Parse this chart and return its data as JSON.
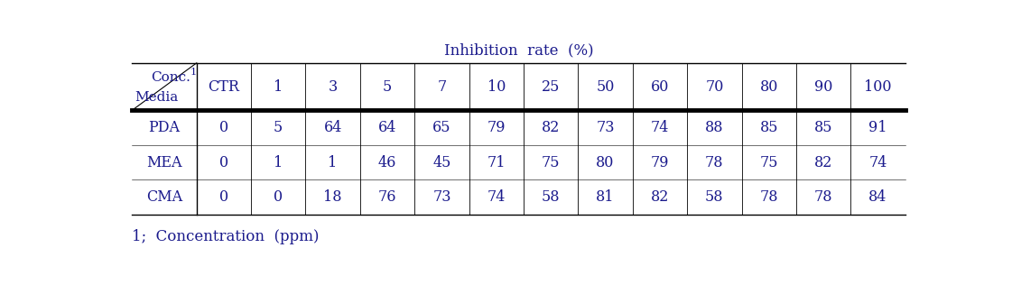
{
  "title": "Inhibition  rate  (%)",
  "header_cols": [
    "CTR",
    "1",
    "3",
    "5",
    "7",
    "10",
    "25",
    "50",
    "60",
    "70",
    "80",
    "90",
    "100"
  ],
  "corner_top": "Conc.",
  "corner_super": "1",
  "corner_bottom": "Media",
  "rows": [
    [
      "PDA",
      "0",
      "5",
      "64",
      "64",
      "65",
      "79",
      "82",
      "73",
      "74",
      "88",
      "85",
      "85",
      "91"
    ],
    [
      "MEA",
      "0",
      "1",
      "1",
      "46",
      "45",
      "71",
      "75",
      "80",
      "79",
      "78",
      "75",
      "82",
      "74"
    ],
    [
      "CMA",
      "0",
      "0",
      "18",
      "76",
      "73",
      "74",
      "58",
      "81",
      "82",
      "58",
      "78",
      "78",
      "84"
    ]
  ],
  "footnote": "1;  Concentration  (ppm)",
  "bg_color": "#ffffff",
  "text_color": "#1a1a8c",
  "font_size": 11.5,
  "title_font_size": 12,
  "footnote_font_size": 12
}
